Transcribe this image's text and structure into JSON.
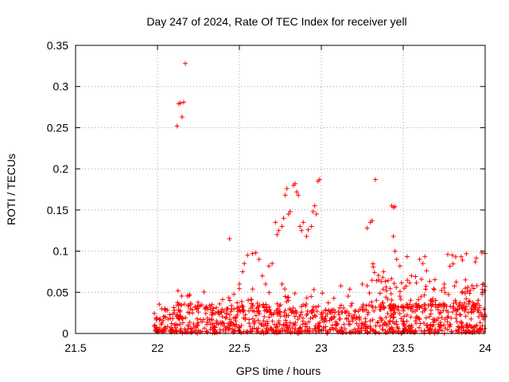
{
  "chart_data": {
    "type": "scatter",
    "title": "Day 247 of 2024, Rate Of TEC Index for receiver yell",
    "xlabel": "GPS time / hours",
    "ylabel": "ROTI / TECUs",
    "xlim": [
      21.5,
      24
    ],
    "ylim": [
      0,
      0.35
    ],
    "xticks": [
      "21.5",
      "22",
      "22.5",
      "23",
      "23.5",
      "24"
    ],
    "yticks": [
      "0",
      "0.05",
      "0.1",
      "0.15",
      "0.2",
      "0.25",
      "0.3",
      "0.35"
    ],
    "grid": true,
    "marker": "+",
    "series": [
      {
        "name": "ROTI",
        "color": "#ff0000",
        "clusters": [
          {
            "x_start": 21.98,
            "x_end": 24.0,
            "y_min": 0.0,
            "y_max": 0.035,
            "count": 900
          },
          {
            "x_start": 21.98,
            "x_end": 24.0,
            "y_min": 0.025,
            "y_max": 0.055,
            "count": 140
          },
          {
            "x_start": 23.3,
            "x_end": 24.0,
            "y_min": 0.03,
            "y_max": 0.095,
            "count": 110
          }
        ],
        "points": [
          [
            22.12,
            0.252
          ],
          [
            22.13,
            0.279
          ],
          [
            22.14,
            0.28
          ],
          [
            22.15,
            0.263
          ],
          [
            22.16,
            0.281
          ],
          [
            22.17,
            0.328
          ],
          [
            22.44,
            0.115
          ],
          [
            22.5,
            0.06
          ],
          [
            22.52,
            0.075
          ],
          [
            22.53,
            0.085
          ],
          [
            22.55,
            0.095
          ],
          [
            22.58,
            0.097
          ],
          [
            22.6,
            0.098
          ],
          [
            22.62,
            0.09
          ],
          [
            22.64,
            0.07
          ],
          [
            22.66,
            0.06
          ],
          [
            22.68,
            0.082
          ],
          [
            22.7,
            0.085
          ],
          [
            22.72,
            0.135
          ],
          [
            22.73,
            0.12
          ],
          [
            22.74,
            0.125
          ],
          [
            22.76,
            0.13
          ],
          [
            22.77,
            0.14
          ],
          [
            22.78,
            0.168
          ],
          [
            22.79,
            0.176
          ],
          [
            22.8,
            0.145
          ],
          [
            22.81,
            0.148
          ],
          [
            22.83,
            0.18
          ],
          [
            22.84,
            0.182
          ],
          [
            22.85,
            0.172
          ],
          [
            22.86,
            0.168
          ],
          [
            22.87,
            0.13
          ],
          [
            22.88,
            0.125
          ],
          [
            22.89,
            0.135
          ],
          [
            22.91,
            0.118
          ],
          [
            22.92,
            0.126
          ],
          [
            22.94,
            0.13
          ],
          [
            22.95,
            0.148
          ],
          [
            22.96,
            0.155
          ],
          [
            22.97,
            0.145
          ],
          [
            22.98,
            0.185
          ],
          [
            22.99,
            0.187
          ],
          [
            22.76,
            0.06
          ],
          [
            22.78,
            0.045
          ],
          [
            22.8,
            0.04
          ],
          [
            23.28,
            0.128
          ],
          [
            23.3,
            0.135
          ],
          [
            23.31,
            0.137
          ],
          [
            23.33,
            0.187
          ],
          [
            23.43,
            0.155
          ],
          [
            23.44,
            0.153
          ],
          [
            23.45,
            0.154
          ],
          [
            23.44,
            0.118
          ],
          [
            23.45,
            0.1
          ],
          [
            23.46,
            0.09
          ],
          [
            23.48,
            0.082
          ],
          [
            23.25,
            0.06
          ],
          [
            23.28,
            0.058
          ],
          [
            23.35,
            0.065
          ],
          [
            23.38,
            0.075
          ],
          [
            23.55,
            0.07
          ],
          [
            23.6,
            0.09
          ],
          [
            23.62,
            0.085
          ],
          [
            23.75,
            0.06
          ],
          [
            23.8,
            0.095
          ],
          [
            23.82,
            0.093
          ],
          [
            23.88,
            0.065
          ],
          [
            23.92,
            0.058
          ],
          [
            23.98,
            0.098
          ],
          [
            24.0,
            0.097
          ],
          [
            23.99,
            0.06
          ],
          [
            24.0,
            0.057
          ]
        ]
      }
    ]
  }
}
